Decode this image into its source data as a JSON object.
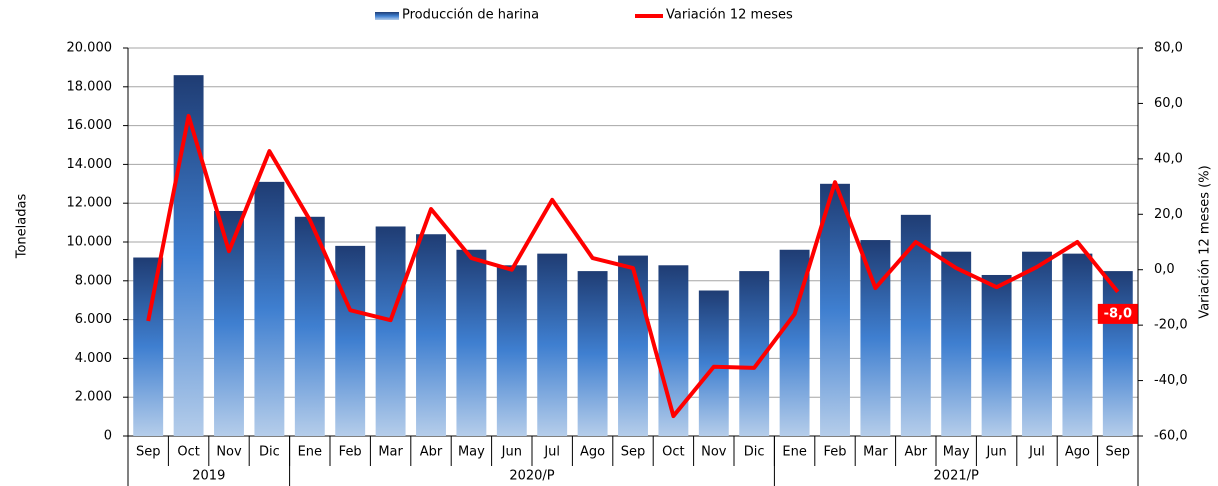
{
  "chart_data": {
    "type": "bar-line",
    "categories": [
      "Sep",
      "Oct",
      "Nov",
      "Dic",
      "Ene",
      "Feb",
      "Mar",
      "Abr",
      "May",
      "Jun",
      "Jul",
      "Ago",
      "Sep",
      "Oct",
      "Nov",
      "Dic",
      "Ene",
      "Feb",
      "Mar",
      "Abr",
      "May",
      "Jun",
      "Jul",
      "Ago",
      "Sep"
    ],
    "groups": [
      {
        "label": "2019",
        "count": 4
      },
      {
        "label": "2020/P",
        "count": 12
      },
      {
        "label": "2021/P",
        "count": 9
      }
    ],
    "y_label": "Toneladas",
    "y2_label": "Variación 12 meses (%)",
    "ylim": [
      0,
      20000
    ],
    "yticks": [
      {
        "value": 0,
        "label": "0"
      },
      {
        "value": 2000,
        "label": "2.000"
      },
      {
        "value": 4000,
        "label": "4.000"
      },
      {
        "value": 6000,
        "label": "6.000"
      },
      {
        "value": 8000,
        "label": "8.000"
      },
      {
        "value": 10000,
        "label": "10.000"
      },
      {
        "value": 12000,
        "label": "12.000"
      },
      {
        "value": 14000,
        "label": "14.000"
      },
      {
        "value": 16000,
        "label": "16.000"
      },
      {
        "value": 18000,
        "label": "18.000"
      },
      {
        "value": 20000,
        "label": "20.000"
      }
    ],
    "y2lim": [
      -60,
      80
    ],
    "y2ticks": [
      {
        "value": -60,
        "label": "-60,0"
      },
      {
        "value": -40,
        "label": "-40,0"
      },
      {
        "value": -20,
        "label": "-20,0"
      },
      {
        "value": 0,
        "label": "0,0"
      },
      {
        "value": 20,
        "label": "20,0"
      },
      {
        "value": 40,
        "label": "40,0"
      },
      {
        "value": 60,
        "label": "60,0"
      },
      {
        "value": 80,
        "label": "80,0"
      }
    ],
    "grid": true,
    "legend": "top",
    "series": [
      {
        "name": "Producción de harina",
        "type": "bar",
        "color": "#1f3c73",
        "values": [
          9200,
          18600,
          11600,
          13100,
          11300,
          9800,
          10800,
          10400,
          9600,
          8800,
          9400,
          8500,
          9300,
          8800,
          7500,
          8500,
          9600,
          13000,
          10100,
          11400,
          9500,
          8300,
          9500,
          9400,
          8500
        ]
      },
      {
        "name": "Variación 12 meses",
        "type": "line",
        "axis": "y2",
        "color": "#ff0000",
        "values": [
          -18.5,
          55.5,
          6.7,
          42.8,
          18,
          -14.6,
          -18.2,
          21.9,
          4.2,
          0,
          25.2,
          4.2,
          0.6,
          -52.8,
          -35,
          -35.4,
          -16,
          31.6,
          -6.6,
          10,
          0.6,
          -6.3,
          1,
          10,
          -8.0
        ],
        "value_labels": [
          null,
          null,
          null,
          null,
          null,
          null,
          null,
          null,
          null,
          null,
          null,
          null,
          null,
          null,
          null,
          null,
          null,
          null,
          null,
          null,
          null,
          null,
          null,
          null,
          "-8,0"
        ]
      }
    ]
  }
}
